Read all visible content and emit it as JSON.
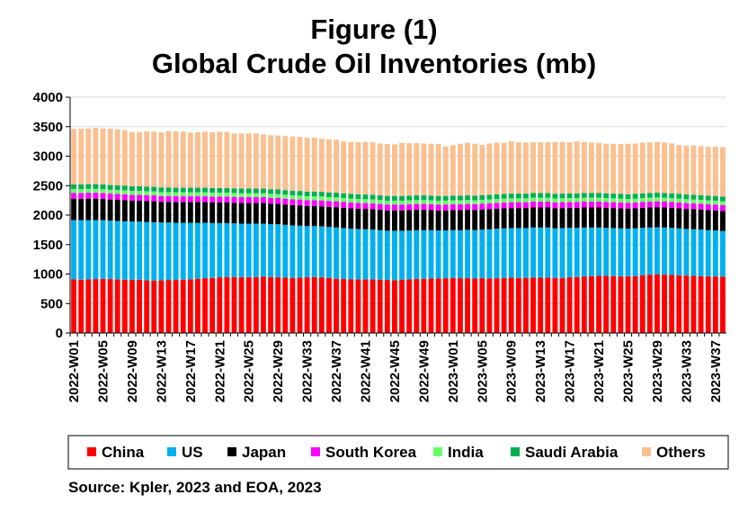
{
  "chart_data": {
    "type": "bar",
    "stacked": true,
    "title": "Figure (1)",
    "subtitle": "Global Crude Oil Inventories (mb)",
    "xlabel": "",
    "ylabel": "",
    "ylim": [
      0,
      4000
    ],
    "yticks": [
      0,
      500,
      1000,
      1500,
      2000,
      2500,
      3000,
      3500,
      4000
    ],
    "grid": true,
    "legend_position": "bottom",
    "source": "Source: Kpler, 2023 and EOA, 2023",
    "categories": [
      "2022-W01",
      "2022-W02",
      "2022-W03",
      "2022-W04",
      "2022-W05",
      "2022-W06",
      "2022-W07",
      "2022-W08",
      "2022-W09",
      "2022-W10",
      "2022-W11",
      "2022-W12",
      "2022-W13",
      "2022-W14",
      "2022-W15",
      "2022-W16",
      "2022-W17",
      "2022-W18",
      "2022-W19",
      "2022-W20",
      "2022-W21",
      "2022-W22",
      "2022-W23",
      "2022-W24",
      "2022-W25",
      "2022-W26",
      "2022-W27",
      "2022-W28",
      "2022-W29",
      "2022-W30",
      "2022-W31",
      "2022-W32",
      "2022-W33",
      "2022-W34",
      "2022-W35",
      "2022-W36",
      "2022-W37",
      "2022-W38",
      "2022-W39",
      "2022-W40",
      "2022-W41",
      "2022-W42",
      "2022-W43",
      "2022-W44",
      "2022-W45",
      "2022-W46",
      "2022-W47",
      "2022-W48",
      "2022-W49",
      "2022-W50",
      "2022-W51",
      "2022-W52",
      "2023-W01",
      "2023-W02",
      "2023-W03",
      "2023-W04",
      "2023-W05",
      "2023-W06",
      "2023-W07",
      "2023-W08",
      "2023-W09",
      "2023-W10",
      "2023-W11",
      "2023-W12",
      "2023-W13",
      "2023-W14",
      "2023-W15",
      "2023-W16",
      "2023-W17",
      "2023-W18",
      "2023-W19",
      "2023-W20",
      "2023-W21",
      "2023-W22",
      "2023-W23",
      "2023-W24",
      "2023-W25",
      "2023-W26",
      "2023-W27",
      "2023-W28",
      "2023-W29",
      "2023-W30",
      "2023-W31",
      "2023-W32",
      "2023-W33",
      "2023-W34",
      "2023-W35",
      "2023-W36",
      "2023-W37",
      "2023-W38"
    ],
    "series": [
      {
        "name": "China",
        "color": "#ff0000",
        "values": [
          910,
          905,
          910,
          915,
          920,
          915,
          910,
          905,
          900,
          905,
          895,
          890,
          895,
          900,
          900,
          905,
          910,
          920,
          930,
          935,
          945,
          950,
          950,
          945,
          945,
          950,
          955,
          950,
          945,
          940,
          935,
          940,
          945,
          950,
          945,
          935,
          920,
          915,
          910,
          910,
          910,
          910,
          905,
          900,
          895,
          905,
          910,
          915,
          920,
          925,
          925,
          930,
          935,
          930,
          930,
          925,
          930,
          925,
          930,
          935,
          940,
          935,
          935,
          940,
          940,
          940,
          935,
          935,
          945,
          950,
          960,
          965,
          970,
          970,
          965,
          960,
          960,
          965,
          980,
          990,
          995,
          990,
          985,
          980,
          975,
          970,
          965,
          960,
          960,
          955
        ]
      },
      {
        "name": "US",
        "color": "#00b0f0",
        "values": [
          1005,
          1010,
          1005,
          1000,
          995,
          990,
          990,
          990,
          990,
          985,
          990,
          990,
          980,
          975,
          970,
          965,
          960,
          950,
          940,
          930,
          920,
          915,
          910,
          910,
          910,
          905,
          900,
          895,
          900,
          895,
          890,
          880,
          870,
          865,
          865,
          865,
          870,
          865,
          860,
          855,
          850,
          845,
          840,
          835,
          840,
          830,
          830,
          830,
          825,
          820,
          815,
          810,
          810,
          815,
          820,
          820,
          825,
          835,
          840,
          840,
          840,
          845,
          845,
          850,
          850,
          850,
          840,
          845,
          840,
          835,
          830,
          825,
          820,
          815,
          815,
          815,
          810,
          810,
          805,
          800,
          800,
          800,
          800,
          795,
          790,
          790,
          790,
          785,
          780,
          775
        ]
      },
      {
        "name": "Japan",
        "color": "#000000",
        "values": [
          360,
          360,
          365,
          365,
          360,
          360,
          360,
          360,
          355,
          355,
          355,
          355,
          350,
          350,
          350,
          350,
          350,
          350,
          350,
          350,
          350,
          350,
          350,
          350,
          350,
          350,
          350,
          350,
          345,
          345,
          345,
          345,
          340,
          340,
          340,
          340,
          345,
          345,
          345,
          345,
          345,
          345,
          345,
          345,
          345,
          345,
          345,
          345,
          345,
          340,
          340,
          340,
          340,
          340,
          340,
          340,
          340,
          340,
          340,
          340,
          340,
          340,
          340,
          340,
          340,
          340,
          340,
          340,
          340,
          340,
          340,
          340,
          340,
          340,
          340,
          340,
          340,
          340,
          340,
          340,
          340,
          340,
          340,
          340,
          340,
          340,
          340,
          340,
          340,
          340
        ]
      },
      {
        "name": "South Korea",
        "color": "#ff00ff",
        "values": [
          100,
          100,
          100,
          100,
          100,
          100,
          100,
          100,
          100,
          100,
          100,
          100,
          100,
          100,
          100,
          100,
          100,
          100,
          100,
          100,
          100,
          100,
          100,
          100,
          100,
          100,
          100,
          100,
          100,
          100,
          100,
          100,
          100,
          100,
          100,
          100,
          100,
          100,
          100,
          100,
          100,
          100,
          100,
          100,
          100,
          100,
          100,
          100,
          100,
          100,
          100,
          100,
          100,
          100,
          100,
          100,
          100,
          100,
          100,
          100,
          100,
          100,
          100,
          100,
          100,
          100,
          100,
          100,
          100,
          100,
          100,
          100,
          100,
          100,
          100,
          100,
          100,
          100,
          100,
          100,
          100,
          100,
          100,
          100,
          100,
          100,
          100,
          100,
          100,
          100
        ]
      },
      {
        "name": "India",
        "color": "#66ff66",
        "values": [
          65,
          65,
          65,
          65,
          65,
          65,
          65,
          65,
          65,
          65,
          65,
          65,
          65,
          65,
          65,
          65,
          65,
          65,
          65,
          65,
          65,
          65,
          65,
          65,
          65,
          65,
          65,
          65,
          65,
          65,
          65,
          65,
          65,
          65,
          65,
          65,
          65,
          65,
          65,
          65,
          65,
          65,
          65,
          65,
          65,
          65,
          65,
          65,
          65,
          65,
          65,
          65,
          65,
          65,
          65,
          65,
          65,
          65,
          65,
          65,
          65,
          65,
          65,
          65,
          65,
          65,
          65,
          65,
          65,
          65,
          65,
          65,
          65,
          65,
          65,
          65,
          65,
          65,
          65,
          65,
          65,
          65,
          65,
          65,
          65,
          65,
          65,
          65,
          65,
          65
        ]
      },
      {
        "name": "Saudi Arabia",
        "color": "#00b050",
        "values": [
          80,
          80,
          80,
          80,
          80,
          80,
          80,
          80,
          80,
          80,
          80,
          80,
          80,
          80,
          80,
          80,
          80,
          80,
          80,
          80,
          80,
          80,
          80,
          80,
          80,
          80,
          80,
          80,
          80,
          80,
          80,
          80,
          80,
          80,
          80,
          80,
          80,
          80,
          80,
          80,
          80,
          80,
          80,
          80,
          80,
          80,
          80,
          80,
          80,
          80,
          80,
          80,
          80,
          80,
          80,
          80,
          80,
          80,
          80,
          80,
          80,
          80,
          80,
          80,
          80,
          80,
          80,
          80,
          80,
          80,
          80,
          80,
          80,
          80,
          80,
          80,
          80,
          80,
          80,
          80,
          80,
          80,
          80,
          80,
          80,
          80,
          80,
          80,
          80,
          80
        ]
      },
      {
        "name": "Others",
        "color": "#fac090",
        "values": [
          940,
          945,
          945,
          955,
          950,
          955,
          950,
          940,
          920,
          920,
          935,
          935,
          935,
          955,
          955,
          950,
          935,
          940,
          950,
          945,
          955,
          950,
          930,
          935,
          935,
          935,
          920,
          915,
          915,
          915,
          920,
          920,
          915,
          915,
          900,
          900,
          900,
          880,
          880,
          880,
          890,
          890,
          880,
          880,
          875,
          900,
          890,
          885,
          880,
          880,
          880,
          840,
          855,
          880,
          890,
          880,
          850,
          870,
          875,
          865,
          885,
          870,
          865,
          860,
          860,
          860,
          880,
          875,
          865,
          880,
          865,
          855,
          850,
          840,
          845,
          845,
          855,
          855,
          860,
          860,
          860,
          855,
          845,
          830,
          830,
          835,
          830,
          830,
          835,
          840
        ]
      }
    ]
  }
}
